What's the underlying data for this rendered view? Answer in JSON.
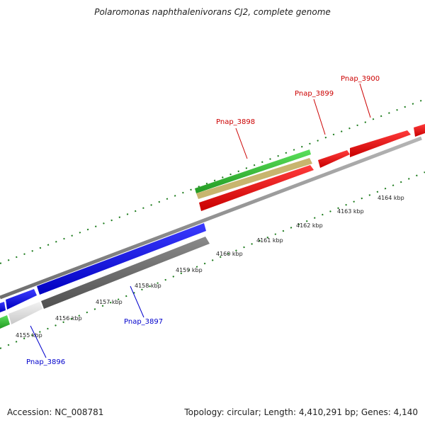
{
  "title": "Polaromonas naphthalenivorans CJ2, complete genome",
  "footer": {
    "accession": "Accession: NC_008781",
    "summary": "Topology: circular; Length: 4,410,291 bp; Genes: 4,140"
  },
  "kbp_labels": [
    "4155 kbp",
    "4156 kbp",
    "4157 kbp",
    "4158 kbp",
    "4159 kbp",
    "4160 kbp",
    "4161 kbp",
    "4162 kbp",
    "4163 kbp",
    "4164 kbp"
  ],
  "gene_labels": {
    "g3896": "Pnap_3896",
    "g3897": "Pnap_3897",
    "g3898": "Pnap_3898",
    "g3899": "Pnap_3899",
    "g3900": "Pnap_3900"
  },
  "colors": {
    "forward_cds": "#ff0000",
    "reverse_cds": "#0000ff",
    "rna_feature": "#33cc33",
    "tick": "#1a7a1a",
    "backbone": "#888888"
  }
}
